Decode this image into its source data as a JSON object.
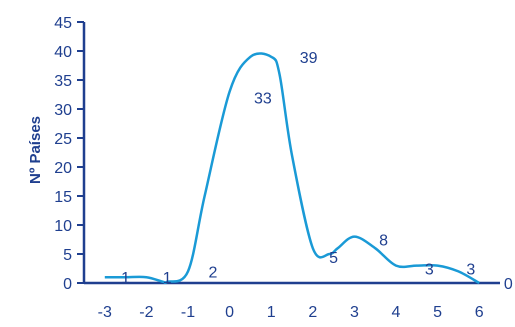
{
  "chart_data": {
    "type": "line",
    "title": "",
    "xlabel": "",
    "ylabel": "Nº Países",
    "xlim": [
      -3.5,
      6.5
    ],
    "ylim": [
      0,
      45
    ],
    "x_ticks": [
      "-3",
      "-2",
      "-1",
      "0",
      "1",
      "2",
      "3",
      "4",
      "5",
      "6"
    ],
    "y_ticks": [
      "0",
      "5",
      "10",
      "15",
      "20",
      "25",
      "30",
      "35",
      "40",
      "45"
    ],
    "grid": false,
    "smooth": true,
    "series": [
      {
        "color": "#1a9ad6",
        "x": [
          -3,
          -2.5,
          -2,
          -1.6,
          -1.5,
          -1,
          -0.6,
          0,
          0.5,
          1,
          1.2,
          1.5,
          2,
          2.4,
          2.6,
          3,
          3.5,
          4,
          4.5,
          5,
          5.5,
          6
        ],
        "y": [
          1,
          1,
          1,
          0.2,
          0.2,
          2,
          15,
          33,
          39,
          39,
          36,
          22,
          6,
          5,
          6,
          8,
          6,
          3,
          3,
          3,
          2,
          0
        ]
      }
    ],
    "data_labels": [
      {
        "text": "1",
        "x": -2.5,
        "y": 1
      },
      {
        "text": "1",
        "x": -1.5,
        "y": 1
      },
      {
        "text": "2",
        "x": -0.4,
        "y": 2
      },
      {
        "text": "33",
        "x": 0.8,
        "y": 32
      },
      {
        "text": "39",
        "x": 1.9,
        "y": 39
      },
      {
        "text": "5",
        "x": 2.5,
        "y": 4.5
      },
      {
        "text": "8",
        "x": 3.7,
        "y": 7.5
      },
      {
        "text": "3",
        "x": 4.8,
        "y": 2.5
      },
      {
        "text": "3",
        "x": 5.8,
        "y": 2.5
      },
      {
        "text": "0",
        "x": 6.7,
        "y": 0
      }
    ]
  }
}
